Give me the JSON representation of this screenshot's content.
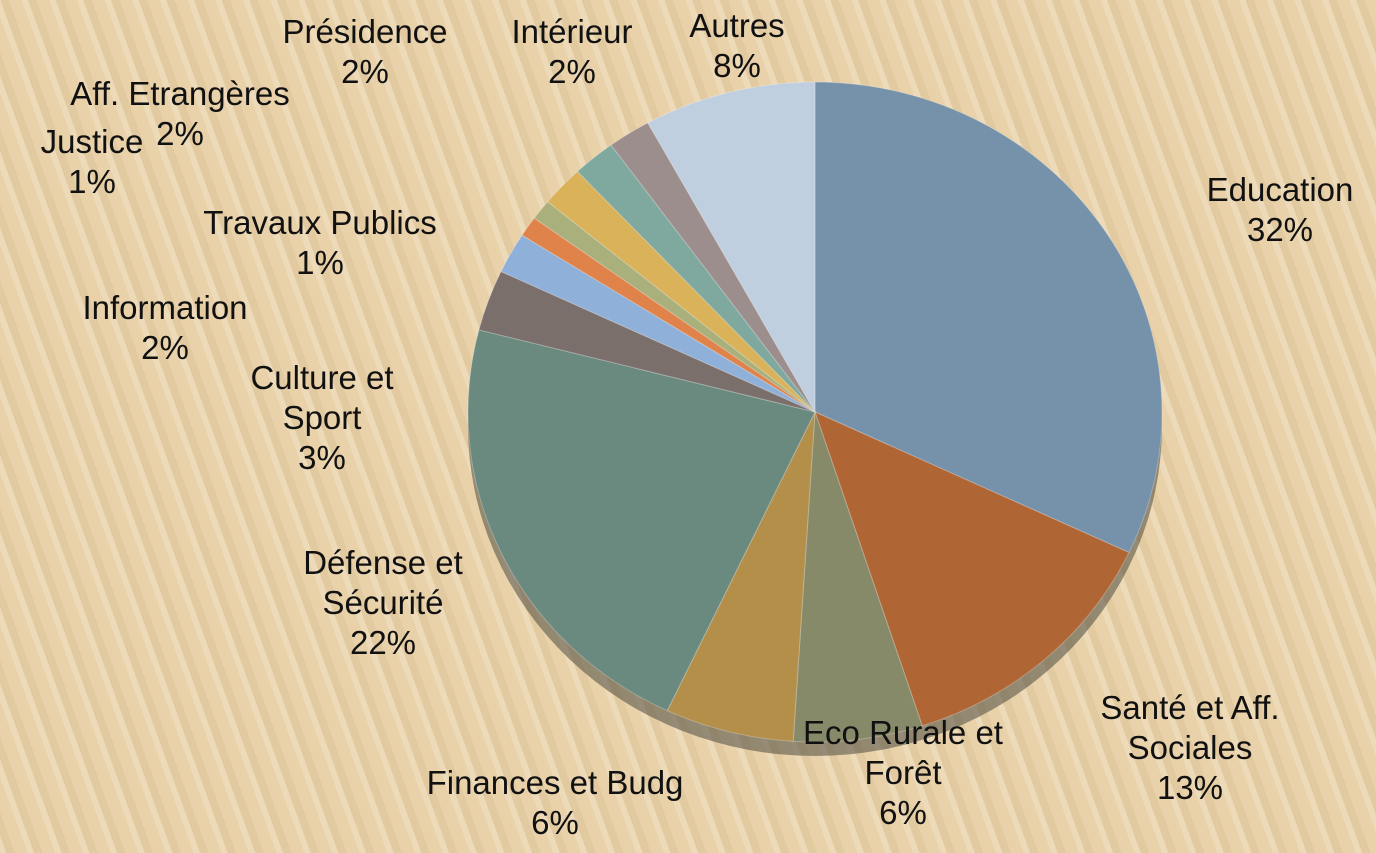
{
  "chart_data": {
    "type": "pie",
    "categories": [
      "Education",
      "Santé et Aff. Sociales",
      "Eco Rurale et Forêt",
      "Finances et Budg",
      "Défense et Sécurité",
      "Culture et Sport",
      "Information",
      "Travaux Publics",
      "Justice",
      "Aff. Etrangères",
      "Présidence",
      "Intérieur",
      "Autres"
    ],
    "values": [
      32,
      13,
      6,
      6,
      22,
      3,
      2,
      1,
      1,
      2,
      2,
      2,
      8
    ],
    "value_labels": [
      "32%",
      "13%",
      "6%",
      "6%",
      "22%",
      "3%",
      "2%",
      "1%",
      "1%",
      "2%",
      "2%",
      "2%",
      "8%"
    ],
    "colors": [
      "#7592aa",
      "#b06535",
      "#878a68",
      "#b38f4a",
      "#6a8a80",
      "#7b6f6c",
      "#8fb0d8",
      "#e0834a",
      "#aab07c",
      "#d9b25a",
      "#7fa89f",
      "#9c8e8c",
      "#c0cfe0"
    ]
  }
}
